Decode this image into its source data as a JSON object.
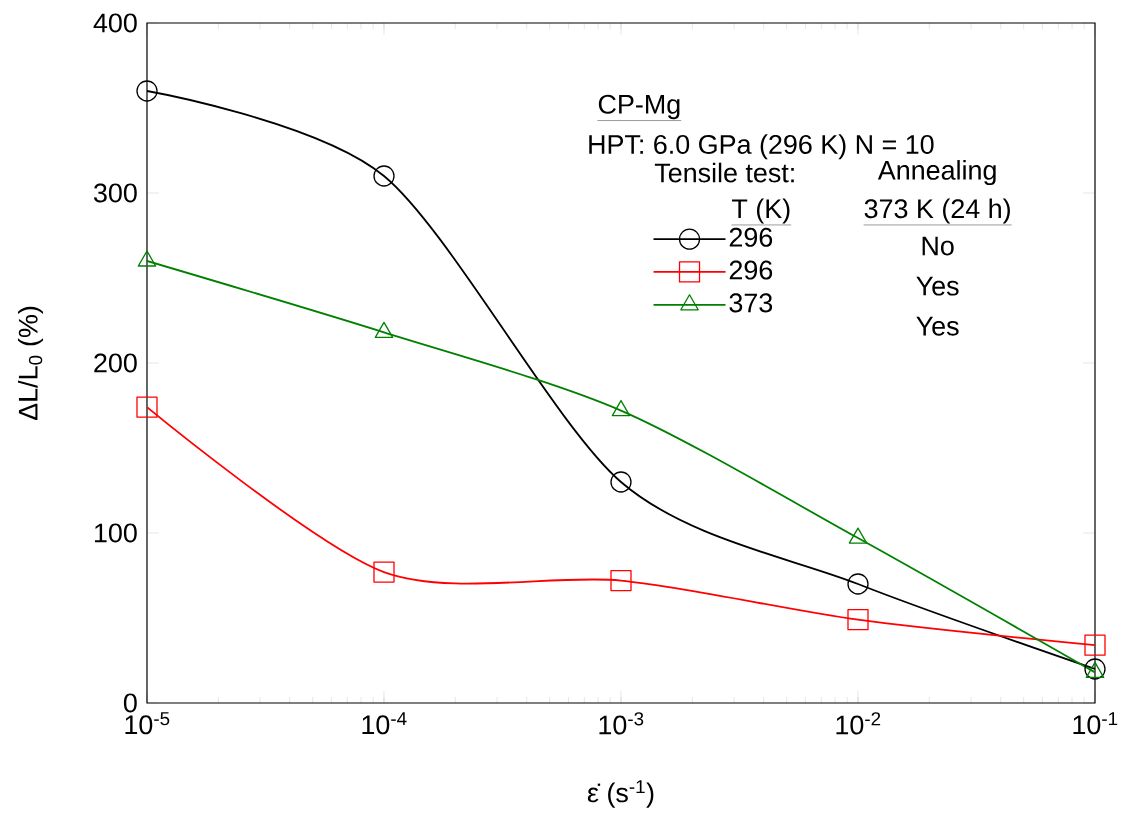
{
  "chart_data": {
    "type": "line",
    "xlabel": "ε̇ (s$^{-1}$)",
    "ylabel": "ΔL/L$_{0}$ (%)",
    "log": "x",
    "x": [
      1e-05,
      0.0001,
      0.001,
      0.01,
      0.1
    ],
    "xlim": [
      1e-05,
      0.1
    ],
    "xticks": [
      {
        "value": 1e-05,
        "label": "10$^{-5}$"
      },
      {
        "value": 0.0001,
        "label": "10$^{-4}$"
      },
      {
        "value": 0.001,
        "label": "10$^{-3}$"
      },
      {
        "value": 0.01,
        "label": "10$^{-2}$"
      },
      {
        "value": 0.1,
        "label": "10$^{-1}$"
      }
    ],
    "ylim": [
      0,
      400
    ],
    "yticks": [
      0,
      100,
      200,
      300,
      400
    ],
    "series": [
      {
        "name": "296",
        "color": "#000000",
        "marker": "circle",
        "values": [
          360,
          310,
          130,
          70,
          20
        ]
      },
      {
        "name": "296",
        "color": "#ff0000",
        "marker": "square",
        "values": [
          174,
          77,
          72,
          49,
          34
        ]
      },
      {
        "name": "373",
        "color": "#008000",
        "marker": "triangle",
        "values": [
          260,
          218,
          172,
          97,
          18
        ]
      }
    ],
    "legend": "top right",
    "grid": false,
    "annotations": [
      "CP-Mg",
      "HPT: 6.0 GPa (296 K) N = 10",
      "Tensile test:",
      "T (K)",
      "Annealing",
      "373 K (24 h)",
      "No",
      "Yes",
      "Yes"
    ]
  }
}
